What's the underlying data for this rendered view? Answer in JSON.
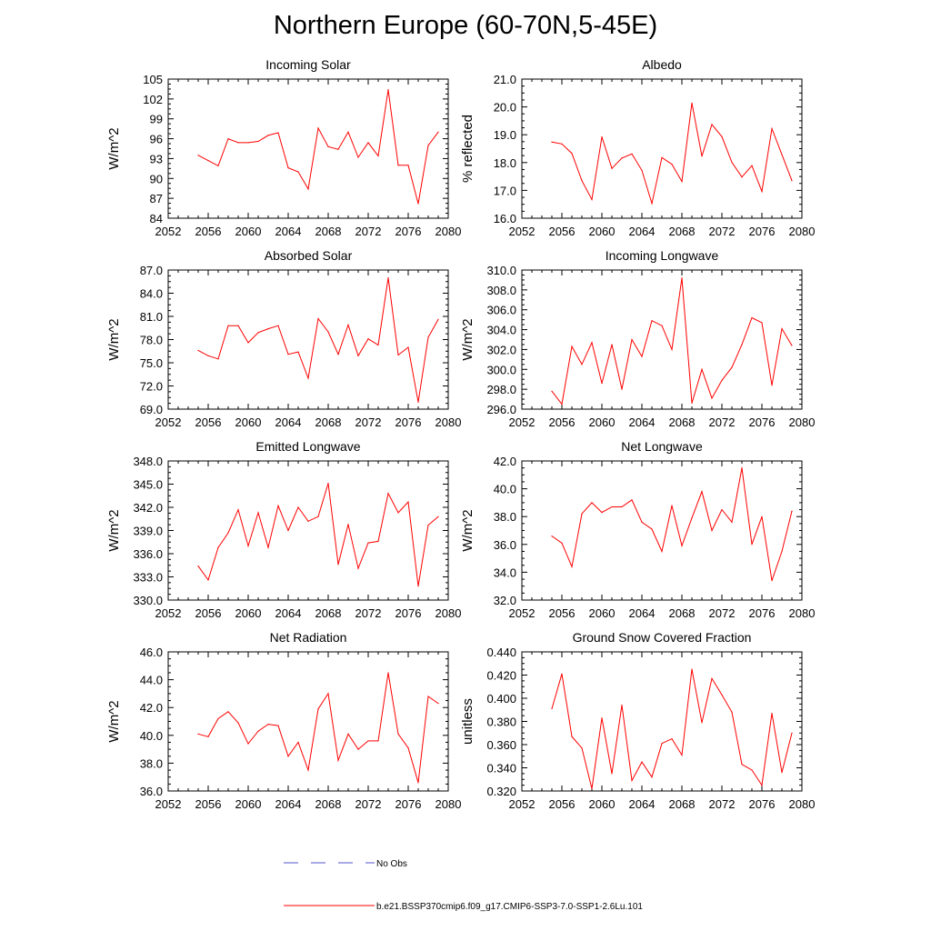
{
  "title": "Northern Europe (60-70N,5-45E)",
  "legend": [
    {
      "label": "No Obs",
      "color": "#5555cc",
      "style": "dashed"
    },
    {
      "label": "b.e21.BSSP370cmip6.f09_g17.CMIP6-SSP3-7.0-SSP1-2.6Lu.101",
      "color": "#ff0000",
      "style": "solid"
    }
  ],
  "chart_data": [
    {
      "type": "line",
      "title": "Incoming Solar",
      "ylabel": "W/m^2",
      "xlim": [
        2052,
        2080
      ],
      "ylim": [
        84,
        105
      ],
      "xticks": [
        2052,
        2056,
        2060,
        2064,
        2068,
        2072,
        2076,
        2080
      ],
      "yticks": [
        "84",
        "87",
        "90",
        "93",
        "96",
        "99",
        "102",
        "105"
      ],
      "x": [
        2055,
        2056,
        2057,
        2058,
        2059,
        2060,
        2061,
        2062,
        2063,
        2064,
        2065,
        2066,
        2067,
        2068,
        2069,
        2070,
        2071,
        2072,
        2073,
        2074,
        2075,
        2076,
        2077,
        2078,
        2079
      ],
      "series": [
        {
          "color": "#ff0000",
          "values": [
            93.5,
            92.7,
            91.9,
            96.0,
            95.4,
            95.4,
            95.6,
            96.5,
            96.9,
            91.6,
            91.0,
            88.4,
            97.6,
            94.8,
            94.4,
            97.0,
            93.2,
            95.4,
            93.4,
            103.4,
            92.0,
            92.0,
            86.2,
            95.0,
            97.0
          ]
        }
      ]
    },
    {
      "type": "line",
      "title": "Albedo",
      "ylabel": "% reflected",
      "xlim": [
        2052,
        2080
      ],
      "ylim": [
        16.0,
        21.0
      ],
      "xticks": [
        2052,
        2056,
        2060,
        2064,
        2068,
        2072,
        2076,
        2080
      ],
      "yticks": [
        "16.0",
        "17.0",
        "18.0",
        "19.0",
        "20.0",
        "21.0"
      ],
      "x": [
        2055,
        2056,
        2057,
        2058,
        2059,
        2060,
        2061,
        2062,
        2063,
        2064,
        2065,
        2066,
        2067,
        2068,
        2069,
        2070,
        2071,
        2072,
        2073,
        2074,
        2075,
        2076,
        2077,
        2078,
        2079
      ],
      "series": [
        {
          "color": "#ff0000",
          "values": [
            18.74,
            18.67,
            18.33,
            17.35,
            16.67,
            18.92,
            17.79,
            18.16,
            18.31,
            17.72,
            16.53,
            18.18,
            17.94,
            17.32,
            20.14,
            18.23,
            19.37,
            18.93,
            18.01,
            17.48,
            17.89,
            16.96,
            19.22,
            18.29,
            17.35
          ]
        }
      ]
    },
    {
      "type": "line",
      "title": "Absorbed Solar",
      "ylabel": "W/m^2",
      "xlim": [
        2052,
        2080
      ],
      "ylim": [
        69.0,
        87.0
      ],
      "xticks": [
        2052,
        2056,
        2060,
        2064,
        2068,
        2072,
        2076,
        2080
      ],
      "yticks": [
        "69.0",
        "72.0",
        "75.0",
        "78.0",
        "81.0",
        "84.0",
        "87.0"
      ],
      "x": [
        2055,
        2056,
        2057,
        2058,
        2059,
        2060,
        2061,
        2062,
        2063,
        2064,
        2065,
        2066,
        2067,
        2068,
        2069,
        2070,
        2071,
        2072,
        2073,
        2074,
        2075,
        2076,
        2077,
        2078,
        2079
      ],
      "series": [
        {
          "color": "#ff0000",
          "values": [
            76.6,
            75.9,
            75.5,
            79.8,
            79.8,
            77.6,
            78.9,
            79.4,
            79.8,
            76.1,
            76.4,
            73.0,
            80.7,
            79.0,
            76.1,
            79.9,
            75.9,
            78.1,
            77.3,
            86.0,
            76.0,
            77.0,
            69.9,
            78.3,
            80.6
          ]
        }
      ]
    },
    {
      "type": "line",
      "title": "Incoming Longwave",
      "ylabel": "W/m^2",
      "xlim": [
        2052,
        2080
      ],
      "ylim": [
        296.0,
        310.0
      ],
      "xticks": [
        2052,
        2056,
        2060,
        2064,
        2068,
        2072,
        2076,
        2080
      ],
      "yticks": [
        "296.0",
        "298.0",
        "300.0",
        "302.0",
        "304.0",
        "306.0",
        "308.0",
        "310.0"
      ],
      "x": [
        2055,
        2056,
        2057,
        2058,
        2059,
        2060,
        2061,
        2062,
        2063,
        2064,
        2065,
        2066,
        2067,
        2068,
        2069,
        2070,
        2071,
        2072,
        2073,
        2074,
        2075,
        2076,
        2077,
        2078,
        2079
      ],
      "series": [
        {
          "color": "#ff0000",
          "values": [
            297.8,
            296.5,
            302.3,
            300.5,
            302.7,
            298.6,
            302.5,
            298.0,
            303.0,
            301.3,
            304.9,
            304.4,
            302.0,
            309.2,
            296.6,
            300.0,
            297.1,
            298.9,
            300.2,
            302.5,
            305.2,
            304.7,
            298.4,
            304.1,
            302.4
          ]
        }
      ]
    },
    {
      "type": "line",
      "title": "Emitted Longwave",
      "ylabel": "W/m^2",
      "xlim": [
        2052,
        2080
      ],
      "ylim": [
        330.0,
        348.0
      ],
      "xticks": [
        2052,
        2056,
        2060,
        2064,
        2068,
        2072,
        2076,
        2080
      ],
      "yticks": [
        "330.0",
        "333.0",
        "336.0",
        "339.0",
        "342.0",
        "345.0",
        "348.0"
      ],
      "x": [
        2055,
        2056,
        2057,
        2058,
        2059,
        2060,
        2061,
        2062,
        2063,
        2064,
        2065,
        2066,
        2067,
        2068,
        2069,
        2070,
        2071,
        2072,
        2073,
        2074,
        2075,
        2076,
        2077,
        2078,
        2079
      ],
      "series": [
        {
          "color": "#ff0000",
          "values": [
            334.4,
            332.6,
            336.8,
            338.7,
            341.7,
            337.0,
            341.3,
            336.8,
            342.2,
            339.0,
            342.0,
            340.2,
            340.8,
            345.1,
            334.6,
            339.8,
            334.1,
            337.4,
            337.6,
            343.8,
            341.3,
            342.7,
            331.8,
            339.7,
            340.8
          ]
        }
      ]
    },
    {
      "type": "line",
      "title": "Net Longwave",
      "ylabel": "W/m^2",
      "xlim": [
        2052,
        2080
      ],
      "ylim": [
        32.0,
        42.0
      ],
      "xticks": [
        2052,
        2056,
        2060,
        2064,
        2068,
        2072,
        2076,
        2080
      ],
      "yticks": [
        "32.0",
        "34.0",
        "36.0",
        "38.0",
        "40.0",
        "42.0"
      ],
      "x": [
        2055,
        2056,
        2057,
        2058,
        2059,
        2060,
        2061,
        2062,
        2063,
        2064,
        2065,
        2066,
        2067,
        2068,
        2069,
        2070,
        2071,
        2072,
        2073,
        2074,
        2075,
        2076,
        2077,
        2078,
        2079
      ],
      "series": [
        {
          "color": "#ff0000",
          "values": [
            36.6,
            36.1,
            34.4,
            38.2,
            39.0,
            38.3,
            38.7,
            38.7,
            39.2,
            37.6,
            37.1,
            35.5,
            38.8,
            35.9,
            37.9,
            39.8,
            37.0,
            38.5,
            37.6,
            41.5,
            36.0,
            38.0,
            33.4,
            35.5,
            38.4
          ]
        }
      ]
    },
    {
      "type": "line",
      "title": "Net Radiation",
      "ylabel": "W/m^2",
      "xlim": [
        2052,
        2080
      ],
      "ylim": [
        36.0,
        46.0
      ],
      "xticks": [
        2052,
        2056,
        2060,
        2064,
        2068,
        2072,
        2076,
        2080
      ],
      "yticks": [
        "36.0",
        "38.0",
        "40.0",
        "42.0",
        "44.0",
        "46.0"
      ],
      "x": [
        2055,
        2056,
        2057,
        2058,
        2059,
        2060,
        2061,
        2062,
        2063,
        2064,
        2065,
        2066,
        2067,
        2068,
        2069,
        2070,
        2071,
        2072,
        2073,
        2074,
        2075,
        2076,
        2077,
        2078,
        2079
      ],
      "series": [
        {
          "color": "#ff0000",
          "values": [
            40.1,
            39.9,
            41.2,
            41.7,
            40.9,
            39.4,
            40.3,
            40.8,
            40.7,
            38.5,
            39.5,
            37.5,
            41.9,
            43.0,
            38.2,
            40.1,
            39.0,
            39.6,
            39.6,
            44.5,
            40.1,
            39.1,
            36.6,
            42.8,
            42.3
          ]
        }
      ]
    },
    {
      "type": "line",
      "title": "Ground Snow Covered Fraction",
      "ylabel": "unitless",
      "xlim": [
        2052,
        2080
      ],
      "ylim": [
        0.32,
        0.44
      ],
      "xticks": [
        2052,
        2056,
        2060,
        2064,
        2068,
        2072,
        2076,
        2080
      ],
      "yticks": [
        "0.320",
        "0.340",
        "0.360",
        "0.380",
        "0.400",
        "0.420",
        "0.440"
      ],
      "x": [
        2055,
        2056,
        2057,
        2058,
        2059,
        2060,
        2061,
        2062,
        2063,
        2064,
        2065,
        2066,
        2067,
        2068,
        2069,
        2070,
        2071,
        2072,
        2073,
        2074,
        2075,
        2076,
        2077,
        2078,
        2079
      ],
      "series": [
        {
          "color": "#ff0000",
          "values": [
            0.391,
            0.421,
            0.367,
            0.357,
            0.322,
            0.383,
            0.335,
            0.394,
            0.329,
            0.345,
            0.332,
            0.361,
            0.365,
            0.351,
            0.425,
            0.379,
            0.417,
            0.403,
            0.388,
            0.343,
            0.338,
            0.325,
            0.387,
            0.336,
            0.37
          ]
        }
      ]
    }
  ]
}
